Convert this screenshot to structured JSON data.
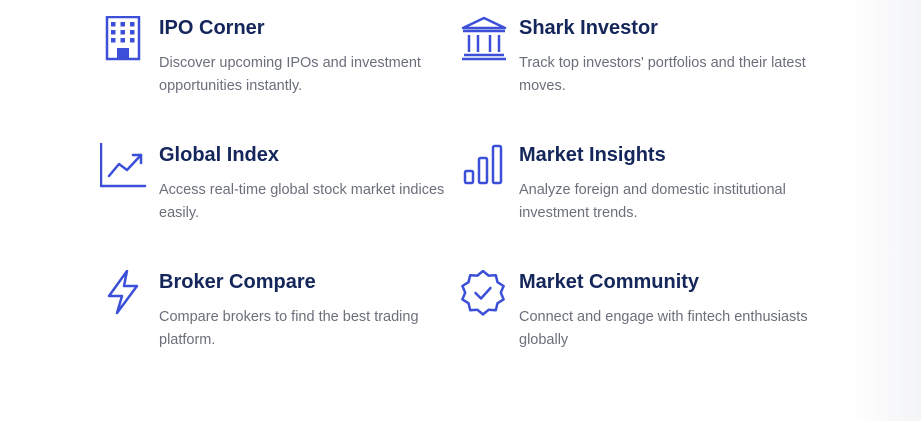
{
  "theme": {
    "accent": "#3b4fd8",
    "title_color": "#14265a",
    "text_color": "#6b6f7a"
  },
  "features": [
    {
      "title": "IPO Corner",
      "description": "Discover upcoming IPOs and investment opportunities instantly.",
      "icon": "building-icon"
    },
    {
      "title": "Shark Investor",
      "description": "Track top investors' portfolios and their latest moves.",
      "icon": "bank-icon"
    },
    {
      "title": "Global Index",
      "description": "Access real-time global stock market indices easily.",
      "icon": "trend-chart-icon"
    },
    {
      "title": "Market Insights",
      "description": "Analyze foreign and domestic institutional investment trends.",
      "icon": "bar-chart-icon"
    },
    {
      "title": "Broker Compare",
      "description": "Compare brokers to find the best trading platform.",
      "icon": "lightning-icon"
    },
    {
      "title": "Market Community",
      "description": "Connect and engage with fintech enthusiasts globally",
      "icon": "verified-badge-icon"
    }
  ]
}
